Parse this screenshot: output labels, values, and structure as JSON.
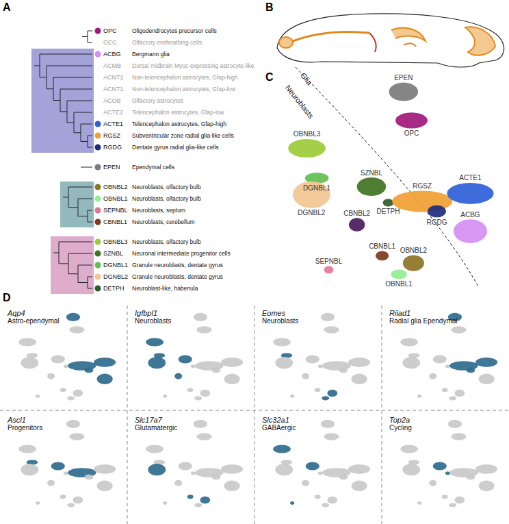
{
  "panel_labels": [
    "A",
    "B",
    "C",
    "D"
  ],
  "taxonomy": {
    "groups": [
      {
        "shade": null,
        "items": [
          {
            "code": "OPC",
            "name": "Oligodendrocytes precursor cells",
            "color": "#a0197a"
          },
          {
            "code": "OEC",
            "name": "Olfactory ensheathing cells",
            "color": null
          }
        ]
      },
      {
        "shade": "#a3a3d9",
        "items": [
          {
            "code": "ACBG",
            "name": "Bergmann glia",
            "color": "#d58ef2"
          },
          {
            "code": "ACMB",
            "name": "Dorsal midbrain Myoc-expressing astrocyte-like",
            "color": null
          },
          {
            "code": "ACNT2",
            "name": "Non-telencephalon astrocytes, Gfap-high",
            "color": null
          },
          {
            "code": "ACNT1",
            "name": "Non-telencephalon astrocytes, Gfap-low",
            "color": null
          },
          {
            "code": "ACOB",
            "name": "Olfactory astrocytes",
            "color": null
          },
          {
            "code": "ACTE2",
            "name": "Telencephalon astrocytes, Gfap-low",
            "color": null
          },
          {
            "code": "ACTE1",
            "name": "Telencephalon astrocytes, Gfap-high",
            "color": "#2f5fd8"
          },
          {
            "code": "RGSZ",
            "name": "Subventricular zone radial glia-like cells",
            "color": "#f0a132"
          },
          {
            "code": "RGDG",
            "name": "Dentate gyrus radial glia-like cells",
            "color": "#1d2c80"
          }
        ]
      },
      {
        "shade": null,
        "items": [
          {
            "code": "EPEN",
            "name": "Ependymal cells",
            "color": "#7b7b7b"
          }
        ]
      },
      {
        "shade": "#93b9be",
        "items": [
          {
            "code": "OBNBL2",
            "name": "Neuroblasts, olfactory bulb",
            "color": "#8b7424"
          },
          {
            "code": "OBNBL1",
            "name": "Neuroblasts, olfactory bulb",
            "color": "#93ee92"
          },
          {
            "code": "SEPNBL",
            "name": "Neuroblasts, septum",
            "color": "#e27898"
          },
          {
            "code": "CBNBL1",
            "name": "Neuroblasts, cerebellum",
            "color": "#7b3b1c"
          }
        ]
      },
      {
        "shade": "#deadcc",
        "items": [
          {
            "code": "OBNBL3",
            "name": "Neuroblasts, olfactory bulb",
            "color": "#9ccc3a"
          },
          {
            "code": "SZNBL",
            "name": "Neuronal intermediate progenitor cells",
            "color": "#3f7321"
          },
          {
            "code": "DGNBL1",
            "name": "Granule neuroblasts, dentate gyrus",
            "color": "#5fbf50"
          },
          {
            "code": "DGNBL2",
            "name": "Granule neuroblasts, dentate gyrus",
            "color": "#f2c590"
          },
          {
            "code": "DETPH",
            "name": "Neuroblast-like, habenula",
            "color": "#2f5c2c"
          }
        ]
      }
    ]
  },
  "chart_data": [
    {
      "type": "scatter",
      "annotations": [
        "Glia",
        "Neuroblasts"
      ],
      "xlim": [
        0,
        100
      ],
      "ylim": [
        0,
        100
      ],
      "tick_labels": false,
      "clusters": [
        {
          "name": "EPEN",
          "color": "#7b7b7b",
          "x": 57.7,
          "y": 90.8,
          "rx": 6.0,
          "ry": 4.3
        },
        {
          "name": "OPC",
          "color": "#a0197a",
          "x": 61.0,
          "y": 77.5,
          "rx": 6.6,
          "ry": 3.7
        },
        {
          "name": "OBNBL3",
          "color": "#9ccc3a",
          "x": 17.9,
          "y": 64.6,
          "rx": 7.7,
          "ry": 4.3
        },
        {
          "name": "DGNBL1",
          "color": "#5fbf50",
          "x": 22.0,
          "y": 50.8,
          "rx": 4.9,
          "ry": 2.5
        },
        {
          "name": "DGNBL2",
          "color": "#f2c590",
          "x": 19.8,
          "y": 43.1,
          "rx": 7.7,
          "ry": 6.2
        },
        {
          "name": "SZNBL",
          "color": "#3f7321",
          "x": 44.5,
          "y": 46.8,
          "rx": 6.0,
          "ry": 4.3
        },
        {
          "name": "DETPH",
          "color": "#2f5c2c",
          "x": 51.4,
          "y": 39.4,
          "rx": 2.2,
          "ry": 1.8
        },
        {
          "name": "RGSZ",
          "color": "#f0a132",
          "x": 65.4,
          "y": 40.0,
          "rx": 12.4,
          "ry": 4.9
        },
        {
          "name": "ACTE1",
          "color": "#2f5fd8",
          "x": 85.2,
          "y": 43.7,
          "rx": 9.6,
          "ry": 4.9
        },
        {
          "name": "RGDG",
          "color": "#1d2c80",
          "x": 71.4,
          "y": 35.4,
          "rx": 3.8,
          "ry": 2.8
        },
        {
          "name": "ACBG",
          "color": "#d58ef2",
          "x": 85.2,
          "y": 26.2,
          "rx": 6.9,
          "ry": 5.5
        },
        {
          "name": "CBNBL2",
          "color": "#4a1a5a",
          "x": 38.5,
          "y": 29.2,
          "rx": 3.3,
          "ry": 3.1
        },
        {
          "name": "CBNBL1",
          "color": "#7b3b1c",
          "x": 48.9,
          "y": 14.8,
          "rx": 2.7,
          "ry": 2.2
        },
        {
          "name": "SEPNBL",
          "color": "#e27898",
          "x": 26.9,
          "y": 8.3,
          "rx": 1.9,
          "ry": 1.8
        },
        {
          "name": "OBNBL2",
          "color": "#8b7424",
          "x": 61.8,
          "y": 11.4,
          "rx": 4.4,
          "ry": 3.7
        },
        {
          "name": "OBNBL1",
          "color": "#93ee92",
          "x": 55.8,
          "y": 6.2,
          "rx": 3.3,
          "ry": 2.2
        }
      ]
    },
    {
      "type": "scatter",
      "title": "Aqp4",
      "subtitle": "Astro-ependymal",
      "color": "#2f6b8e",
      "xlim": [
        0,
        100
      ],
      "ylim": [
        0,
        100
      ],
      "tick_labels": false,
      "highlight": [
        "EPEN",
        "RGSZ",
        "ACTE1",
        "RGDG",
        "ACBG"
      ]
    },
    {
      "type": "scatter",
      "title": "Igfbpl1",
      "subtitle": "Neuroblasts",
      "color": "#2f6b8e",
      "xlim": [
        0,
        100
      ],
      "ylim": [
        0,
        100
      ],
      "tick_labels": false,
      "highlight": [
        "OBNBL3",
        "DGNBL1",
        "DGNBL2",
        "SZNBL",
        "CBNBL2"
      ]
    },
    {
      "type": "scatter",
      "title": "Eomes",
      "subtitle": "Neuroblasts",
      "color": "#2f6b8e",
      "xlim": [
        0,
        100
      ],
      "ylim": [
        0,
        100
      ],
      "tick_labels": false,
      "highlight": [
        "DGNBL1",
        "OBNBL2",
        "OBNBL1"
      ]
    },
    {
      "type": "scatter",
      "title": "Riiad1",
      "subtitle": "Radial glia Ependymal",
      "color": "#2f6b8e",
      "xlim": [
        0,
        100
      ],
      "ylim": [
        0,
        100
      ],
      "tick_labels": false,
      "highlight": [
        "EPEN",
        "RGSZ",
        "ACTE1",
        "RGDG"
      ]
    },
    {
      "type": "scatter",
      "title": "Ascl1",
      "subtitle": "Progenitors",
      "color": "#2f6b8e",
      "xlim": [
        0,
        100
      ],
      "ylim": [
        0,
        100
      ],
      "tick_labels": false,
      "highlight": [
        "SZNBL",
        "RGSZ",
        "DGNBL1"
      ]
    },
    {
      "type": "scatter",
      "title": "Slc17a7",
      "subtitle": "Glutamatergic",
      "color": "#2f6b8e",
      "xlim": [
        0,
        100
      ],
      "ylim": [
        0,
        100
      ],
      "tick_labels": false,
      "highlight": [
        "DGNBL2",
        "CBNBL1",
        "OBNBL2"
      ]
    },
    {
      "type": "scatter",
      "title": "Slc32a1",
      "subtitle": "GABAergic",
      "color": "#2f6b8e",
      "xlim": [
        0,
        100
      ],
      "ylim": [
        0,
        100
      ],
      "tick_labels": false,
      "highlight": [
        "OBNBL3",
        "SZNBL",
        "SEPNBL"
      ]
    },
    {
      "type": "scatter",
      "title": "Top2a",
      "subtitle": "Cycling",
      "color": "#2f6b8e",
      "xlim": [
        0,
        100
      ],
      "ylim": [
        0,
        100
      ],
      "tick_labels": false,
      "highlight": [
        "SZNBL",
        "DETPH"
      ]
    }
  ]
}
